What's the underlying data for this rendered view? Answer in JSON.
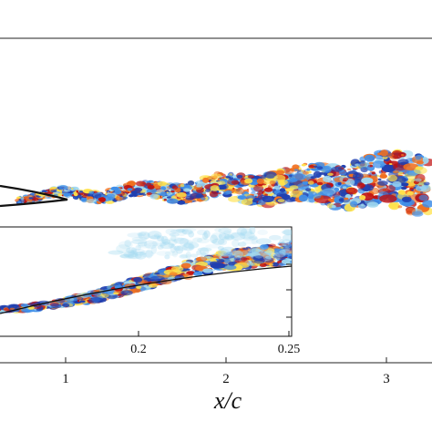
{
  "chart_data": {
    "type": "heatmap",
    "title": "",
    "xlabel": "x/c",
    "ylabel": "",
    "xlim": [
      -0.4,
      3.5
    ],
    "xticks": [
      1,
      2,
      3
    ],
    "xtick_labels": [
      "1",
      "2",
      "3"
    ],
    "colormap": [
      "#1f3fb0",
      "#3f8ee8",
      "#9fd8f0",
      "#ffffff",
      "#ffe14a",
      "#f07020",
      "#c01010"
    ],
    "inset": {
      "xlim": [
        0.1,
        0.25
      ],
      "xticks": [
        0.2,
        0.25
      ],
      "xtick_labels": [
        "0.2",
        "0.25"
      ]
    }
  }
}
